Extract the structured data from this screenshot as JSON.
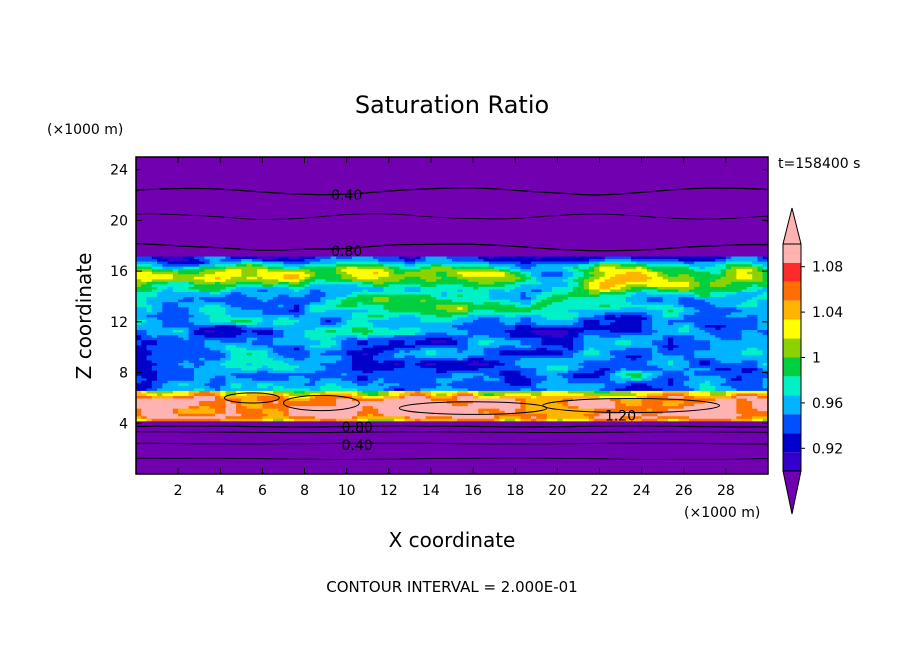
{
  "chart_data": {
    "type": "heatmap",
    "title": "Saturation Ratio",
    "xlabel": "X coordinate",
    "ylabel": "Z coordinate",
    "x_unit": "(×1000 m)",
    "y_unit": "(×1000 m)",
    "time_label": "t=158400 s",
    "footer": "CONTOUR INTERVAL = 2.000E-01",
    "xlim": [
      0,
      30
    ],
    "ylim": [
      0,
      25
    ],
    "x_ticks": [
      "2",
      "4",
      "6",
      "8",
      "10",
      "12",
      "14",
      "16",
      "18",
      "20",
      "22",
      "24",
      "26",
      "28"
    ],
    "x_tick_values": [
      2,
      4,
      6,
      8,
      10,
      12,
      14,
      16,
      18,
      20,
      22,
      24,
      26,
      28
    ],
    "y_ticks": [
      "4",
      "8",
      "12",
      "16",
      "20",
      "24"
    ],
    "y_tick_values": [
      4,
      8,
      12,
      16,
      20,
      24
    ],
    "colorbar": {
      "labels": [
        "1.08",
        "1.04",
        "1",
        "0.96",
        "0.92"
      ],
      "label_values": [
        1.08,
        1.04,
        1.0,
        0.96,
        0.92
      ],
      "range": [
        0.9,
        1.1
      ],
      "step": 0.02,
      "colors": [
        "#5a00a8",
        "#3300cc",
        "#0000cc",
        "#0050ff",
        "#00b4ff",
        "#00f0c8",
        "#00d040",
        "#8cd200",
        "#ffff00",
        "#ffb400",
        "#ff6e00",
        "#ff2a2a",
        "#ffb2b2"
      ],
      "under_color": "#7000b0",
      "over_color": "#ffb2b2"
    },
    "contour_labels": [
      {
        "text": "0.40",
        "x": 10.0,
        "z": 22.0
      },
      {
        "text": "0.80",
        "x": 10.0,
        "z": 17.6
      },
      {
        "text": "1.20",
        "x": 23.0,
        "z": 4.6
      },
      {
        "text": "0.80",
        "x": 10.5,
        "z": 3.7
      },
      {
        "text": "0.40",
        "x": 10.5,
        "z": 2.3
      }
    ]
  }
}
